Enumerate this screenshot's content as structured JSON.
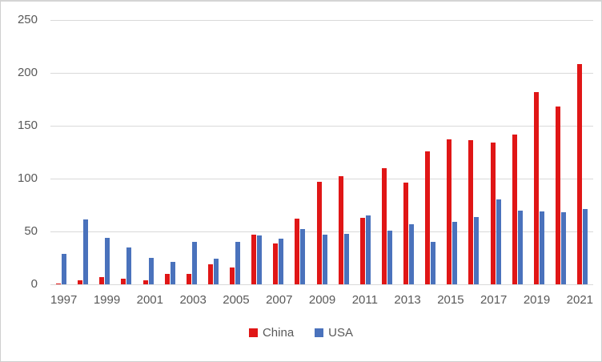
{
  "chart_data": {
    "type": "bar",
    "title": "",
    "categories": [
      "1997",
      "1998",
      "1999",
      "2000",
      "2001",
      "2002",
      "2003",
      "2004",
      "2005",
      "2006",
      "2007",
      "2008",
      "2009",
      "2010",
      "2011",
      "2012",
      "2013",
      "2014",
      "2015",
      "2016",
      "2017",
      "2018",
      "2019",
      "2020",
      "2021"
    ],
    "series": [
      {
        "name": "China",
        "color": "#e01616",
        "values": [
          1,
          4,
          7,
          5,
          4,
          10,
          10,
          19,
          16,
          47,
          39,
          62,
          97,
          102,
          63,
          110,
          96,
          126,
          137,
          136,
          134,
          142,
          182,
          168,
          208
        ]
      },
      {
        "name": "USA",
        "color": "#4a72bc",
        "values": [
          29,
          61,
          44,
          35,
          25,
          21,
          40,
          24,
          40,
          46,
          43,
          52,
          47,
          48,
          65,
          51,
          57,
          40,
          59,
          64,
          80,
          70,
          69,
          68,
          71
        ]
      }
    ],
    "ylim": [
      0,
      250
    ],
    "yticks": [
      0,
      50,
      100,
      150,
      200,
      250
    ],
    "x_tick_labels": [
      "1997",
      "1999",
      "2001",
      "2003",
      "2005",
      "2007",
      "2009",
      "2011",
      "2013",
      "2015",
      "2017",
      "2019",
      "2021"
    ],
    "grid": true,
    "gridline_color": "#d9d9d9",
    "axis_text_color": "#595959",
    "background_color": "#ffffff",
    "legend_position": "bottom"
  }
}
